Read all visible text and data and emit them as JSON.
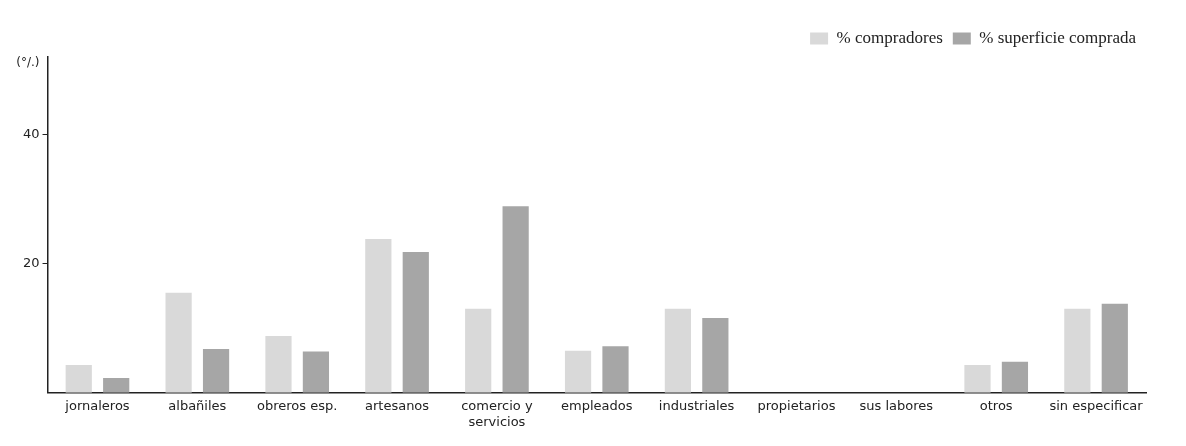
{
  "chart_data": {
    "type": "bar",
    "ylabel": "(°/.)",
    "categories": [
      "jornaleros",
      "albañiles",
      "obreros esp.",
      "artesanos",
      "comercio y servicios",
      "empleados",
      "industriales",
      "propietarios",
      "sus labores",
      "otros",
      "sin especificar"
    ],
    "series": [
      {
        "name": "% compradores",
        "color": "#d9d9d9",
        "values": [
          4.3,
          15.5,
          8.8,
          23.8,
          13.0,
          6.5,
          13.0,
          null,
          null,
          4.3,
          13.0
        ]
      },
      {
        "name": "% superficie comprada",
        "color": "#a6a6a6",
        "values": [
          2.3,
          6.8,
          6.4,
          21.8,
          28.9,
          7.2,
          11.6,
          null,
          null,
          4.8,
          13.8
        ]
      }
    ],
    "ylim": [
      0,
      52
    ],
    "yticks": [
      20,
      40
    ],
    "grid": false,
    "legend": "top right"
  }
}
